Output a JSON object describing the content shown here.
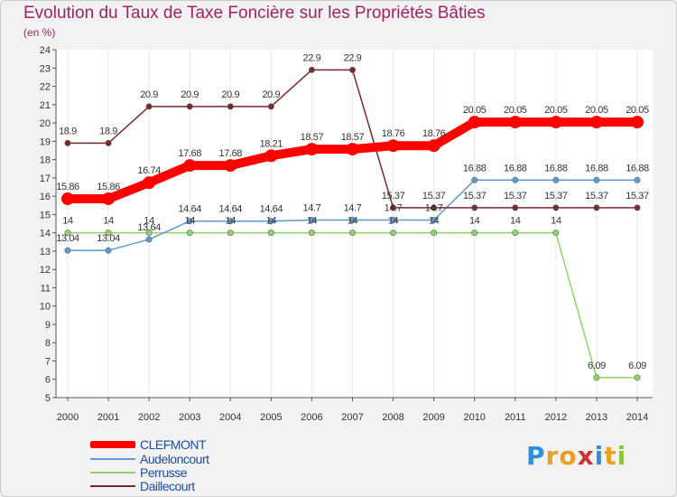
{
  "chart_data": {
    "type": "line",
    "title": "Evolution du Taux de Taxe Foncière sur les Propriétés Bâties",
    "ylabel": "(en %)",
    "xlabel": "",
    "ylim": [
      5,
      24
    ],
    "categories": [
      "2000",
      "2001",
      "2002",
      "2003",
      "2004",
      "2005",
      "2006",
      "2007",
      "2008",
      "2009",
      "2010",
      "2011",
      "2012",
      "2013",
      "2014"
    ],
    "y_ticks": [
      5,
      6,
      7,
      8,
      9,
      10,
      11,
      12,
      13,
      14,
      15,
      16,
      17,
      18,
      19,
      20,
      21,
      22,
      23,
      24
    ],
    "series": [
      {
        "name": "CLEFMONT",
        "color": "#ff0000",
        "labels": [
          "15.86",
          "15.86",
          "16.74",
          "17.68",
          "17.68",
          "18.21",
          "18.57",
          "18.57",
          "18.76",
          "18.76",
          "20.05",
          "20.05",
          "20.05",
          "20.05",
          "20.05"
        ],
        "values": [
          15.86,
          15.86,
          16.74,
          17.68,
          17.68,
          18.21,
          18.57,
          18.57,
          18.76,
          18.76,
          20.05,
          20.05,
          20.05,
          20.05,
          20.05
        ]
      },
      {
        "name": "Audeloncourt",
        "color": "#5a9bd5",
        "labels": [
          "13.04",
          "13.04",
          "13.64",
          "14.64",
          "14.64",
          "14.64",
          "14.7",
          "14.7",
          "14.7",
          "14.7",
          "16.88",
          "16.88",
          "16.88",
          "16.88",
          "16.88"
        ],
        "values": [
          13.04,
          13.04,
          13.64,
          14.64,
          14.64,
          14.64,
          14.7,
          14.7,
          14.7,
          14.7,
          16.88,
          16.88,
          16.88,
          16.88,
          16.88
        ]
      },
      {
        "name": "Perrusse",
        "color": "#8fd46a",
        "labels": [
          "14",
          "14",
          "14",
          "14",
          "14",
          "14",
          "14",
          "14",
          "14",
          "14",
          "14",
          "14",
          "14",
          "6.09",
          "6.09"
        ],
        "values": [
          14,
          14,
          14,
          14,
          14,
          14,
          14,
          14,
          14,
          14,
          14,
          14,
          14,
          6.09,
          6.09
        ]
      },
      {
        "name": "Daillecourt",
        "color": "#7a2a2a",
        "labels": [
          "18.9",
          "18.9",
          "20.9",
          "20.9",
          "20.9",
          "20.9",
          "22.9",
          "22.9",
          "15.37",
          "15.37",
          "15.37",
          "15.37",
          "15.37",
          "15.37",
          "15.37"
        ],
        "values": [
          18.9,
          18.9,
          20.9,
          20.9,
          20.9,
          20.9,
          22.9,
          22.9,
          15.37,
          15.37,
          15.37,
          15.37,
          15.37,
          15.37,
          15.37
        ]
      }
    ],
    "legend_position": "bottom-left"
  },
  "logo": {
    "letters": [
      "P",
      "r",
      "o",
      "x",
      "i",
      "t",
      "i"
    ],
    "colors": [
      "#2f8fd8",
      "#e8a020",
      "#e8a020",
      "#d03030",
      "#2f8fd8",
      "#e8a020",
      "#8fc040"
    ]
  }
}
